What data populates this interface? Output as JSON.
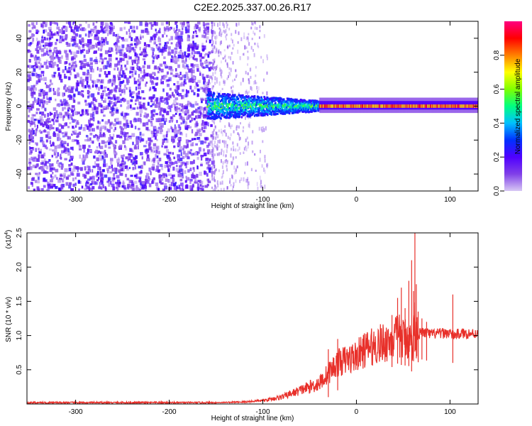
{
  "figure_title": "C2E2.2025.337.00.26.R17",
  "chart_data": [
    {
      "type": "heatmap",
      "xlabel": "Height of straight line (km)",
      "ylabel": "Frequency (Hz)",
      "xlim": [
        -352,
        130
      ],
      "ylim": [
        -50,
        50
      ],
      "xticks": [
        -300,
        -200,
        -100,
        0,
        100
      ],
      "yticks": [
        -40,
        -20,
        0,
        20,
        40
      ],
      "colorbar": {
        "label": "Normalized spectral amplitude",
        "range": [
          0,
          1
        ],
        "ticks": [
          0.0,
          0.2,
          0.4,
          0.6,
          0.8
        ],
        "tick_labels": [
          "0.0",
          "0.2",
          "0.4",
          "0.6",
          "0.8"
        ],
        "colormap": [
          "#d8c8f4",
          "#8040e8",
          "#5000ff",
          "#0030ff",
          "#00c0ff",
          "#00ff80",
          "#80ff00",
          "#ffff00",
          "#ff8000",
          "#ff0000",
          "#ff0080"
        ]
      },
      "regions": [
        {
          "x_range": [
            -352,
            -155
          ],
          "freq_range": [
            -50,
            50
          ],
          "amplitude": 0.1,
          "character": "broadband noise"
        },
        {
          "x_range": [
            -155,
            -95
          ],
          "freq_range": [
            -50,
            50
          ],
          "amplitude": 0.03,
          "character": "sparse faint noise"
        },
        {
          "x_range": [
            -160,
            -40
          ],
          "freq_range": [
            -8,
            8
          ],
          "amplitude": 0.35,
          "character": "emerging tone"
        },
        {
          "x_range": [
            -40,
            130
          ],
          "freq_range": [
            -2,
            3
          ],
          "amplitude": 0.9,
          "character": "narrow carrier near 0 Hz"
        }
      ]
    },
    {
      "type": "line",
      "xlabel": "Height of straight line (km)",
      "ylabel": "SNR (10 * v/v)",
      "y_multiplier": "(x10⁴)",
      "y_multiplier_base": "(x10",
      "y_multiplier_exp": "4",
      "y_multiplier_tail": ")",
      "xlim": [
        -352,
        130
      ],
      "ylim": [
        0,
        2.5
      ],
      "xticks": [
        -300,
        -200,
        -100,
        0,
        100
      ],
      "yticks": [
        0.5,
        1.0,
        1.5,
        2.0,
        2.5
      ],
      "ytick_labels": [
        "0.5",
        "1.0",
        "1.5",
        "2.0",
        "2.5"
      ],
      "series": [
        {
          "color": "#e8302a",
          "x": [
            -352,
            -300,
            -250,
            -200,
            -150,
            -120,
            -100,
            -80,
            -70,
            -60,
            -50,
            -40,
            -30,
            -20,
            -10,
            0,
            10,
            20,
            30,
            40,
            45,
            50,
            55,
            60,
            62,
            65,
            70,
            80,
            90,
            100,
            103,
            110,
            120,
            130
          ],
          "y": [
            0.02,
            0.02,
            0.02,
            0.02,
            0.02,
            0.03,
            0.05,
            0.1,
            0.15,
            0.2,
            0.25,
            0.3,
            0.45,
            0.6,
            0.65,
            0.7,
            0.8,
            0.85,
            0.9,
            0.95,
            1.0,
            0.95,
            0.98,
            0.85,
            1.2,
            1.0,
            1.05,
            1.02,
            1.03,
            1.04,
            1.0,
            1.03,
            1.03,
            1.03
          ]
        }
      ],
      "spikes": [
        {
          "x": 44,
          "y": 1.55
        },
        {
          "x": 48,
          "y": 1.7
        },
        {
          "x": 52,
          "y": 1.4
        },
        {
          "x": 56,
          "y": 1.8
        },
        {
          "x": 59,
          "y": 2.1
        },
        {
          "x": 61,
          "y": 1.65
        },
        {
          "x": 62.5,
          "y": 2.5
        },
        {
          "x": 64,
          "y": 1.75
        },
        {
          "x": 66,
          "y": 1.35
        },
        {
          "x": 38,
          "y": 1.3
        },
        {
          "x": 103,
          "y": 1.6
        },
        {
          "x": 70,
          "y": 1.25
        },
        {
          "x": 75,
          "y": 1.2
        },
        {
          "x": -30,
          "y": 0.8
        },
        {
          "x": -20,
          "y": 0.95
        }
      ]
    }
  ]
}
